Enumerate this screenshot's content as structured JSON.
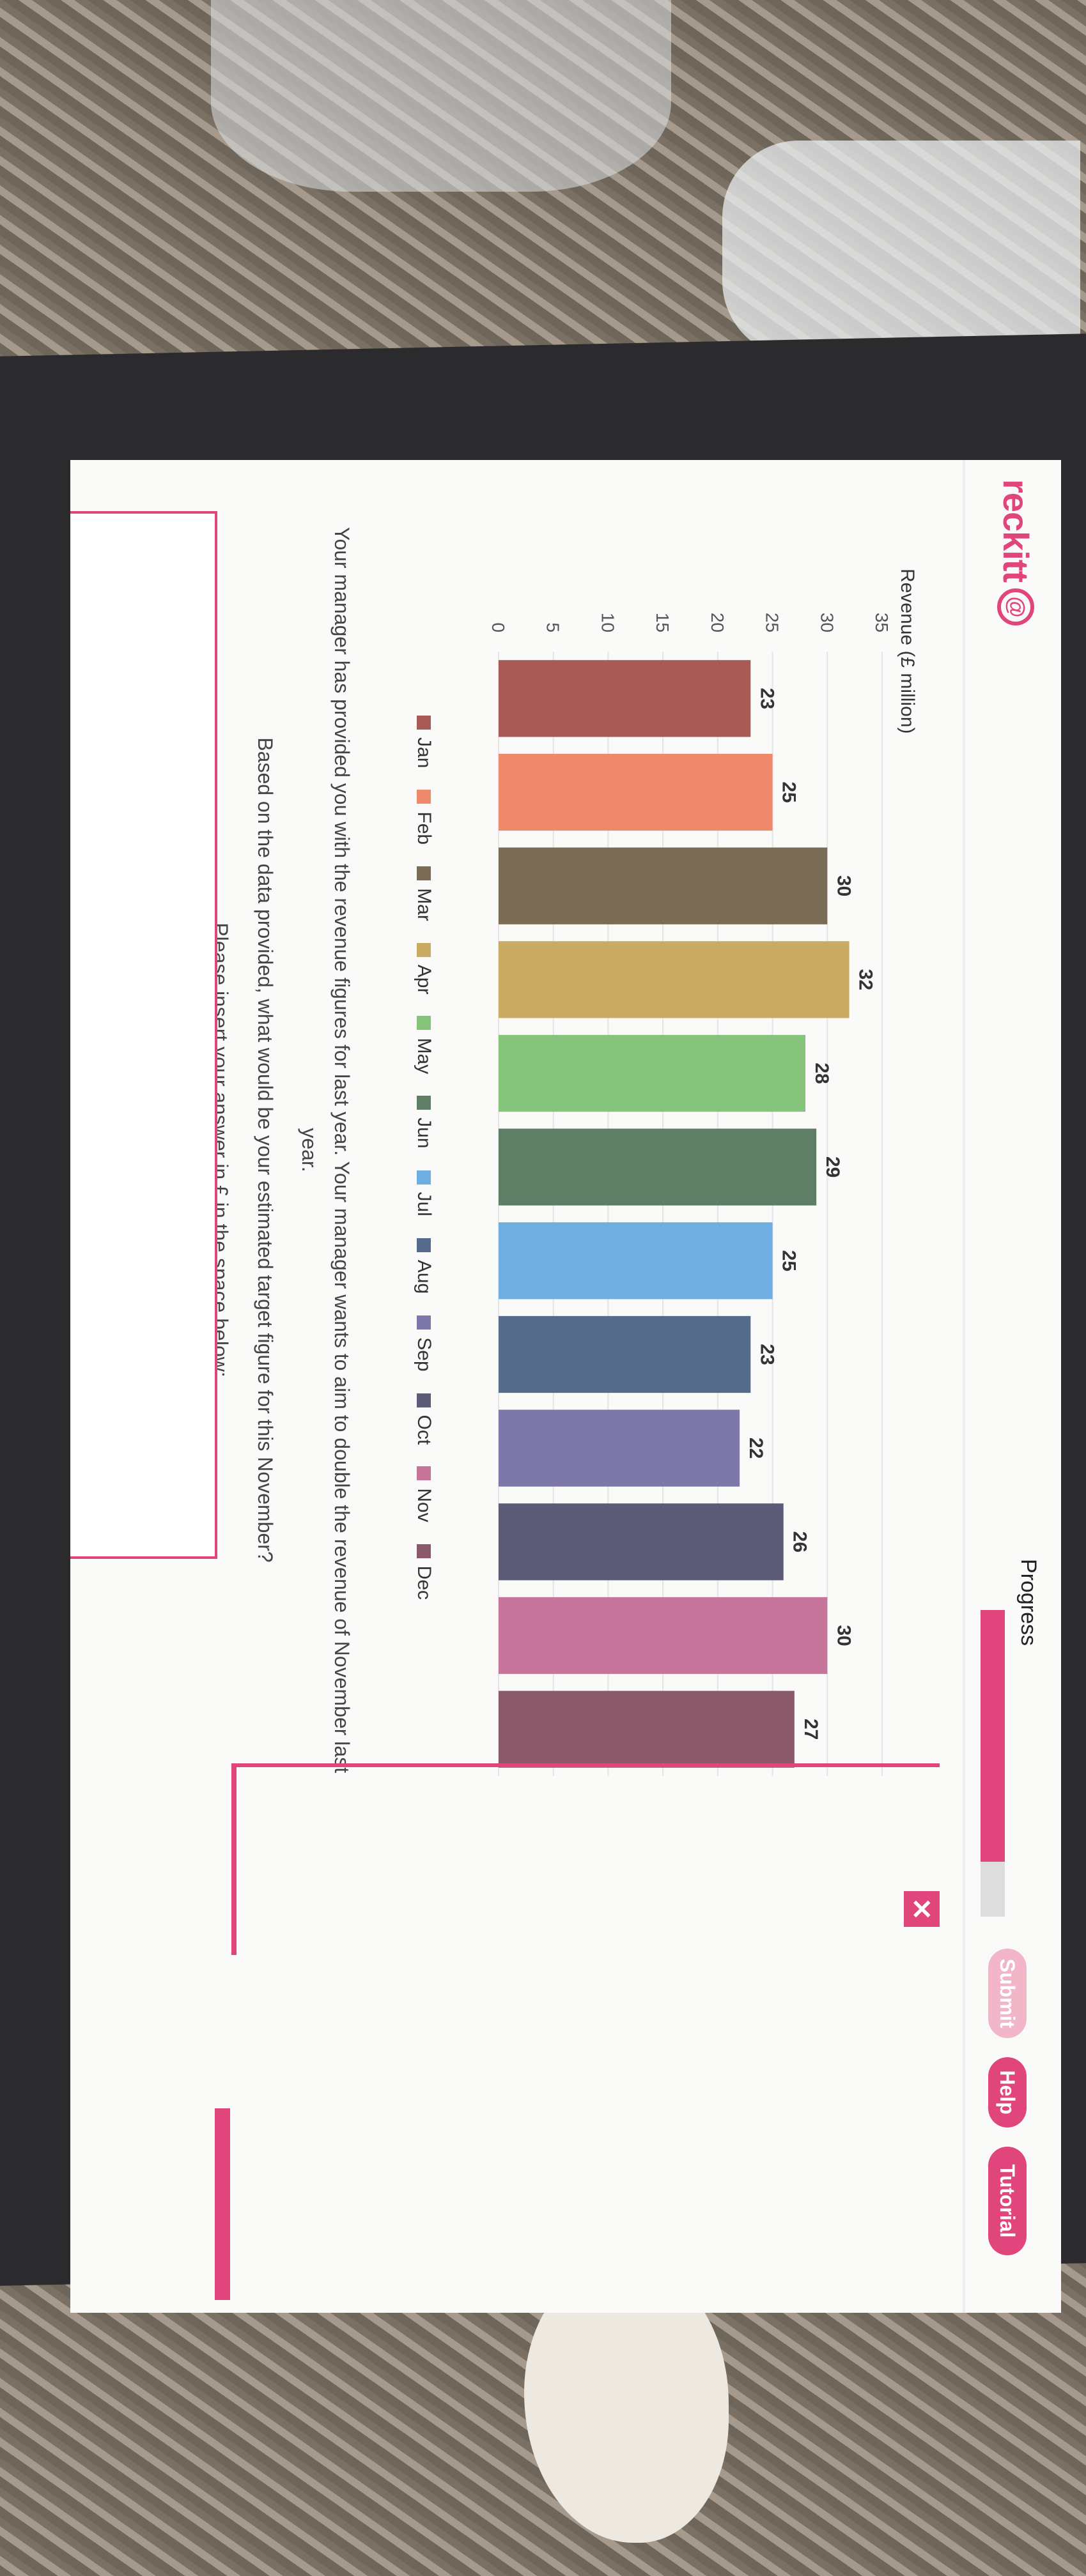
{
  "header": {
    "logo_text": "reckitt",
    "progress_label": "Progress",
    "progress_fraction": 0.82,
    "submit_label": "Submit",
    "help_label": "Help",
    "tutorial_label": "Tutorial",
    "close_glyph": "✕"
  },
  "colors": {
    "accent": "#e0457b",
    "submit_disabled": "#f2b6c9"
  },
  "chart_data": {
    "type": "bar",
    "title": "",
    "xlabel": "",
    "ylabel": "Revenue (£ million)",
    "ylim": [
      0,
      35
    ],
    "yticks": [
      0,
      5,
      10,
      15,
      20,
      25,
      30,
      35
    ],
    "grid": true,
    "legend_position": "bottom",
    "categories": [
      "Jan",
      "Feb",
      "Mar",
      "Apr",
      "May",
      "Jun",
      "Jul",
      "Aug",
      "Sep",
      "Oct",
      "Nov",
      "Dec"
    ],
    "values": [
      23,
      25,
      30,
      32,
      28,
      29,
      25,
      23,
      22,
      26,
      30,
      27
    ],
    "colors": [
      "#a85a55",
      "#ee8a6b",
      "#7a6c55",
      "#c9ab64",
      "#86c47e",
      "#5e7f66",
      "#6eaee0",
      "#566a8c",
      "#7c78a8",
      "#5c5c78",
      "#c7749a",
      "#8a5a6a"
    ]
  },
  "question": {
    "line1": "Your manager has provided you with the revenue figures for last year. Your manager wants to aim to double the revenue of November last year.",
    "line2": "Based on the data provided, what would be your estimated target figure for this November?",
    "line3": "Please insert your answer in £ in the space below:"
  }
}
